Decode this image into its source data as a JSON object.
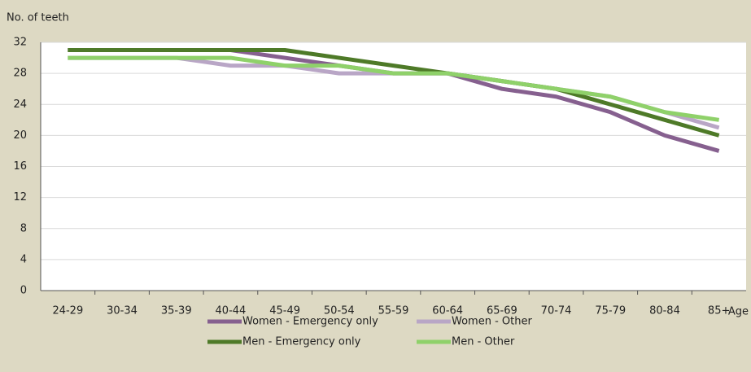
{
  "chart_data": {
    "type": "line",
    "y_label": "No. of teeth",
    "x_label": "Age",
    "categories": [
      "24-29",
      "30-34",
      "35-39",
      "40-44",
      "45-49",
      "50-54",
      "55-59",
      "60-64",
      "65-69",
      "70-74",
      "75-79",
      "80-84",
      "85+"
    ],
    "series": [
      {
        "name": "Women - Emergency only",
        "color": "#86608f",
        "values": [
          31,
          31,
          31,
          31,
          30,
          29,
          28,
          28,
          26,
          25,
          23,
          20,
          18
        ]
      },
      {
        "name": "Women - Other",
        "color": "#b9a6c6",
        "values": [
          30,
          30,
          30,
          29,
          29,
          28,
          28,
          28,
          27,
          26,
          25,
          23,
          21
        ]
      },
      {
        "name": "Men - Emergency only",
        "color": "#4e7a28",
        "values": [
          31,
          31,
          31,
          31,
          31,
          30,
          29,
          28,
          27,
          26,
          24,
          22,
          20
        ]
      },
      {
        "name": "Men - Other",
        "color": "#8fd16a",
        "values": [
          30,
          30,
          30,
          30,
          29,
          29,
          28,
          28,
          27,
          26,
          25,
          23,
          22
        ]
      }
    ],
    "ylim": [
      0,
      32
    ],
    "yticks": [
      0,
      4,
      8,
      12,
      16,
      20,
      24,
      28,
      32
    ],
    "grid": true
  }
}
